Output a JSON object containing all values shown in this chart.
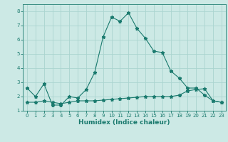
{
  "xlabel": "Humidex (Indice chaleur)",
  "x_values": [
    0,
    1,
    2,
    3,
    4,
    5,
    6,
    7,
    8,
    9,
    10,
    11,
    12,
    13,
    14,
    15,
    16,
    17,
    18,
    19,
    20,
    21,
    22,
    23
  ],
  "line1_y": [
    2.6,
    2.0,
    2.9,
    1.4,
    1.4,
    2.0,
    1.9,
    2.5,
    3.7,
    6.2,
    7.6,
    7.3,
    7.9,
    6.8,
    6.1,
    5.2,
    5.1,
    3.8,
    3.3,
    2.6,
    2.6,
    2.1,
    1.7,
    1.6
  ],
  "line2_y": [
    1.6,
    1.6,
    1.7,
    1.6,
    1.5,
    1.6,
    1.7,
    1.7,
    1.7,
    1.75,
    1.8,
    1.85,
    1.9,
    1.95,
    2.0,
    2.0,
    2.0,
    2.0,
    2.1,
    2.4,
    2.5,
    2.55,
    1.7,
    1.6
  ],
  "line_color": "#1a7a6e",
  "bg_color": "#cce9e5",
  "grid_color": "#aad4cf",
  "ylim": [
    1.0,
    8.5
  ],
  "xlim": [
    -0.5,
    23.5
  ],
  "yticks": [
    1,
    2,
    3,
    4,
    5,
    6,
    7,
    8
  ],
  "xticks": [
    0,
    1,
    2,
    3,
    4,
    5,
    6,
    7,
    8,
    9,
    10,
    11,
    12,
    13,
    14,
    15,
    16,
    17,
    18,
    19,
    20,
    21,
    22,
    23
  ],
  "tick_fontsize": 5.0,
  "ylabel_fontsize": 6.0,
  "xlabel_fontsize": 6.5
}
